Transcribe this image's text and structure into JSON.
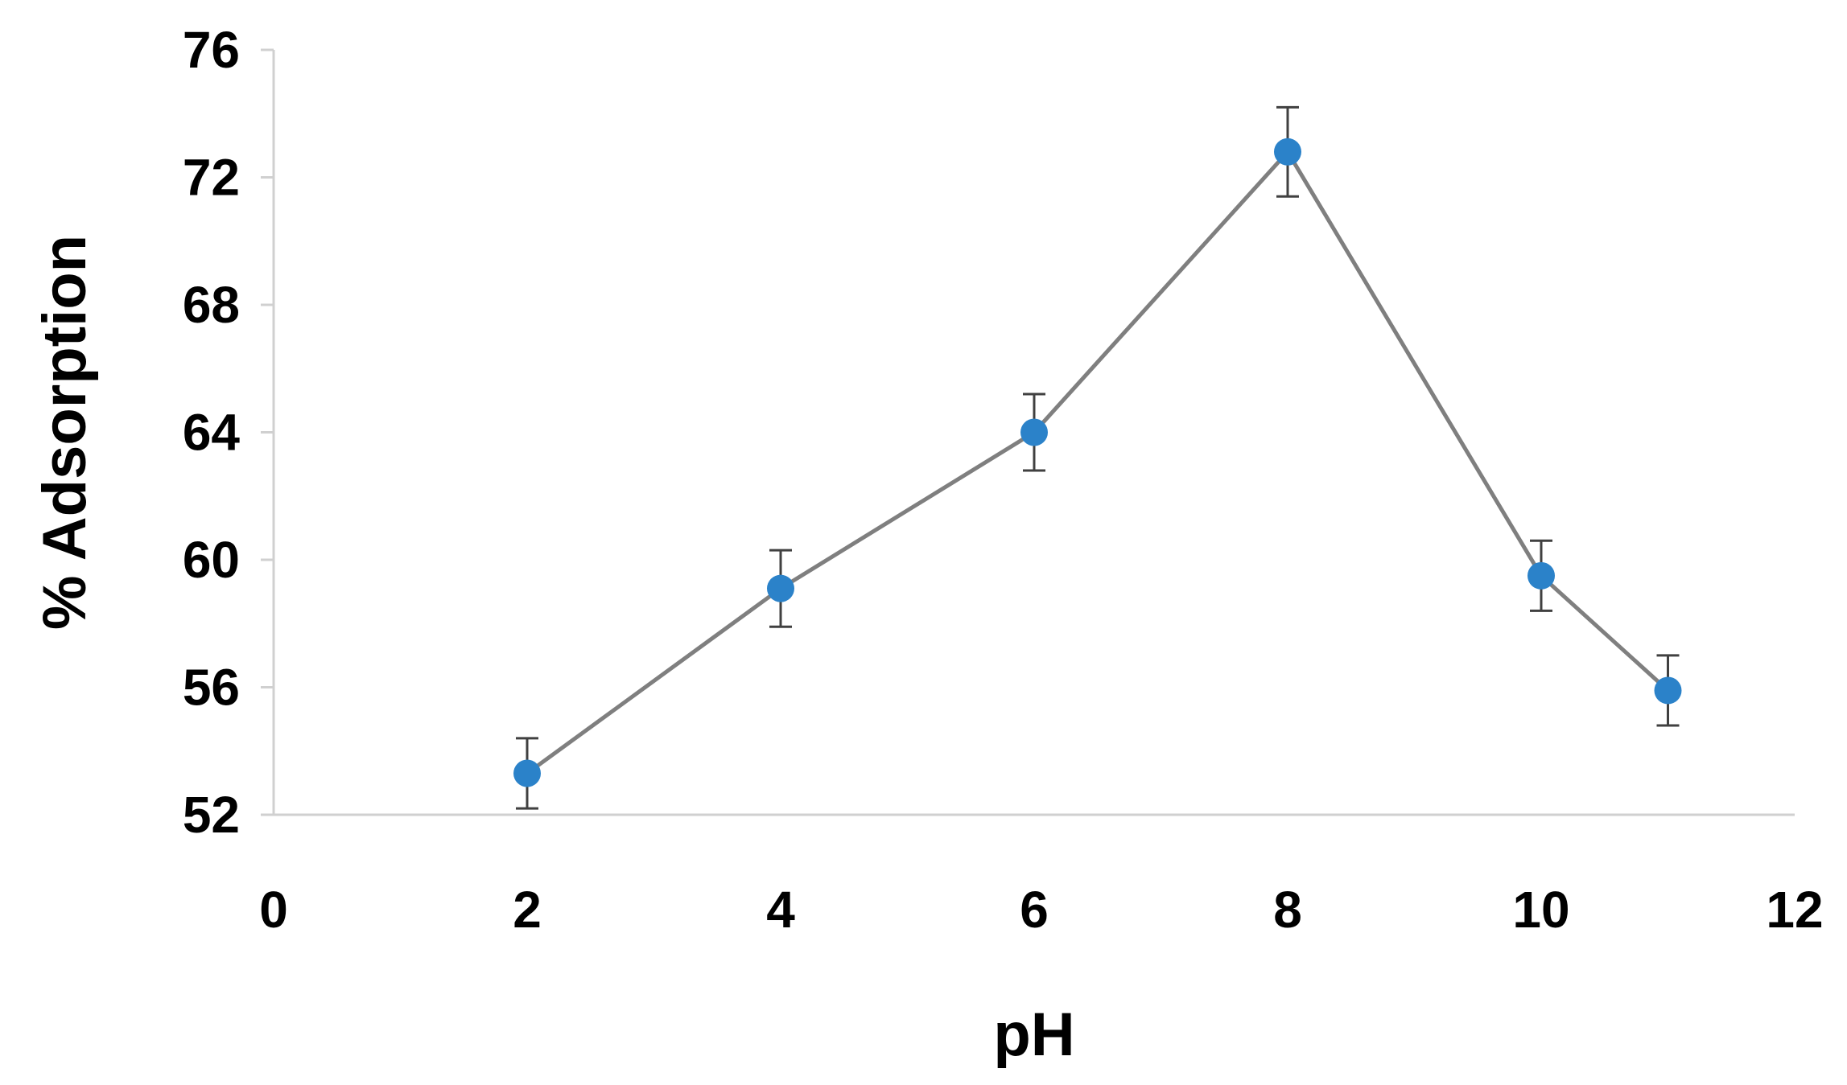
{
  "chart_data": {
    "type": "scatter",
    "title": "",
    "xlabel": "pH",
    "ylabel": "% Adsorption",
    "xlim": [
      0,
      12
    ],
    "ylim": [
      52,
      76
    ],
    "xticks": [
      0,
      2,
      4,
      6,
      8,
      10,
      12
    ],
    "yticks": [
      52,
      56,
      60,
      64,
      68,
      72,
      76
    ],
    "grid": false,
    "legend": "none",
    "series": [
      {
        "x": [
          2,
          4,
          6,
          8,
          10,
          11
        ],
        "y": [
          53.3,
          59.1,
          64.0,
          72.8,
          59.5,
          55.9
        ],
        "error": [
          1.1,
          1.2,
          1.2,
          1.4,
          1.1,
          1.1
        ],
        "marker_color": "#2b82c9",
        "line_color": "#7f7f7f",
        "error_color": "#404040"
      }
    ]
  }
}
